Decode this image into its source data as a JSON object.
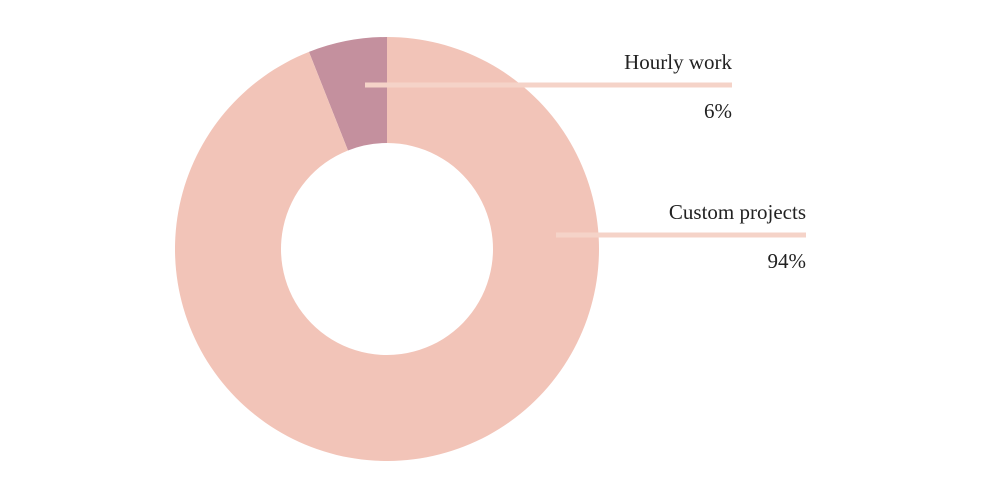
{
  "chart_data": {
    "type": "donut",
    "categories": [
      "Hourly work",
      "Custom projects"
    ],
    "values": [
      6,
      94
    ],
    "value_labels": [
      "6%",
      "94%"
    ],
    "colors": [
      "#c4909e",
      "#f2c4b8"
    ]
  }
}
